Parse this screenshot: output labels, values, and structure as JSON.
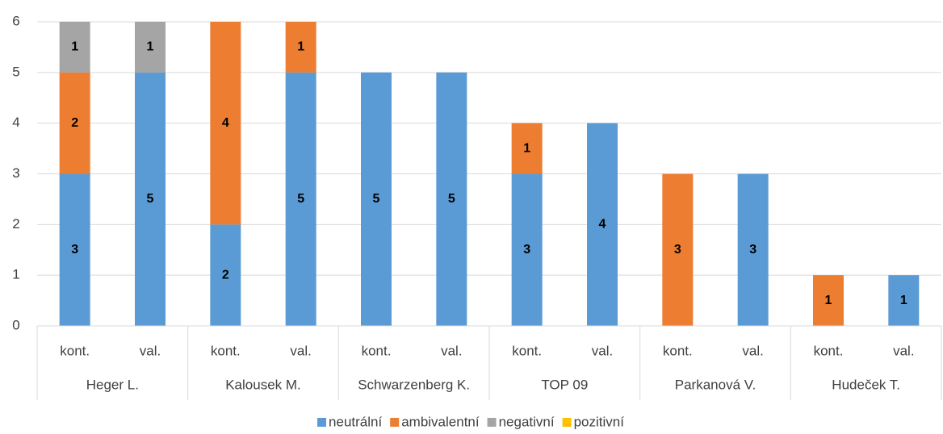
{
  "chart_data": {
    "type": "stacked_bar",
    "categories": [
      "kont.",
      "val.",
      "kont.",
      "val.",
      "kont.",
      "val.",
      "kont.",
      "val.",
      "kont.",
      "val.",
      "kont.",
      "val."
    ],
    "groups": [
      "Heger L.",
      "Kalousek M.",
      "Schwarzenberg K.",
      "TOP 09",
      "Parkanová V.",
      "Hudeček T."
    ],
    "series": [
      {
        "name": "neutrální",
        "color": "#5b9bd5",
        "values": [
          3,
          5,
          2,
          5,
          5,
          5,
          3,
          4,
          0,
          3,
          0,
          1
        ]
      },
      {
        "name": "ambivalentní",
        "color": "#ed7d31",
        "values": [
          2,
          0,
          4,
          1,
          0,
          0,
          1,
          0,
          3,
          0,
          1,
          0
        ]
      },
      {
        "name": "negativní",
        "color": "#a5a5a5",
        "values": [
          1,
          1,
          0,
          0,
          0,
          0,
          0,
          0,
          0,
          0,
          0,
          0
        ]
      },
      {
        "name": "pozitivní",
        "color": "#ffc000",
        "values": [
          0,
          0,
          0,
          0,
          0,
          0,
          0,
          0,
          0,
          0,
          0,
          0
        ]
      }
    ],
    "ylim": [
      0,
      6
    ],
    "yticks": [
      0,
      1,
      2,
      3,
      4,
      5,
      6
    ],
    "grid": true,
    "legend": "bottom"
  }
}
